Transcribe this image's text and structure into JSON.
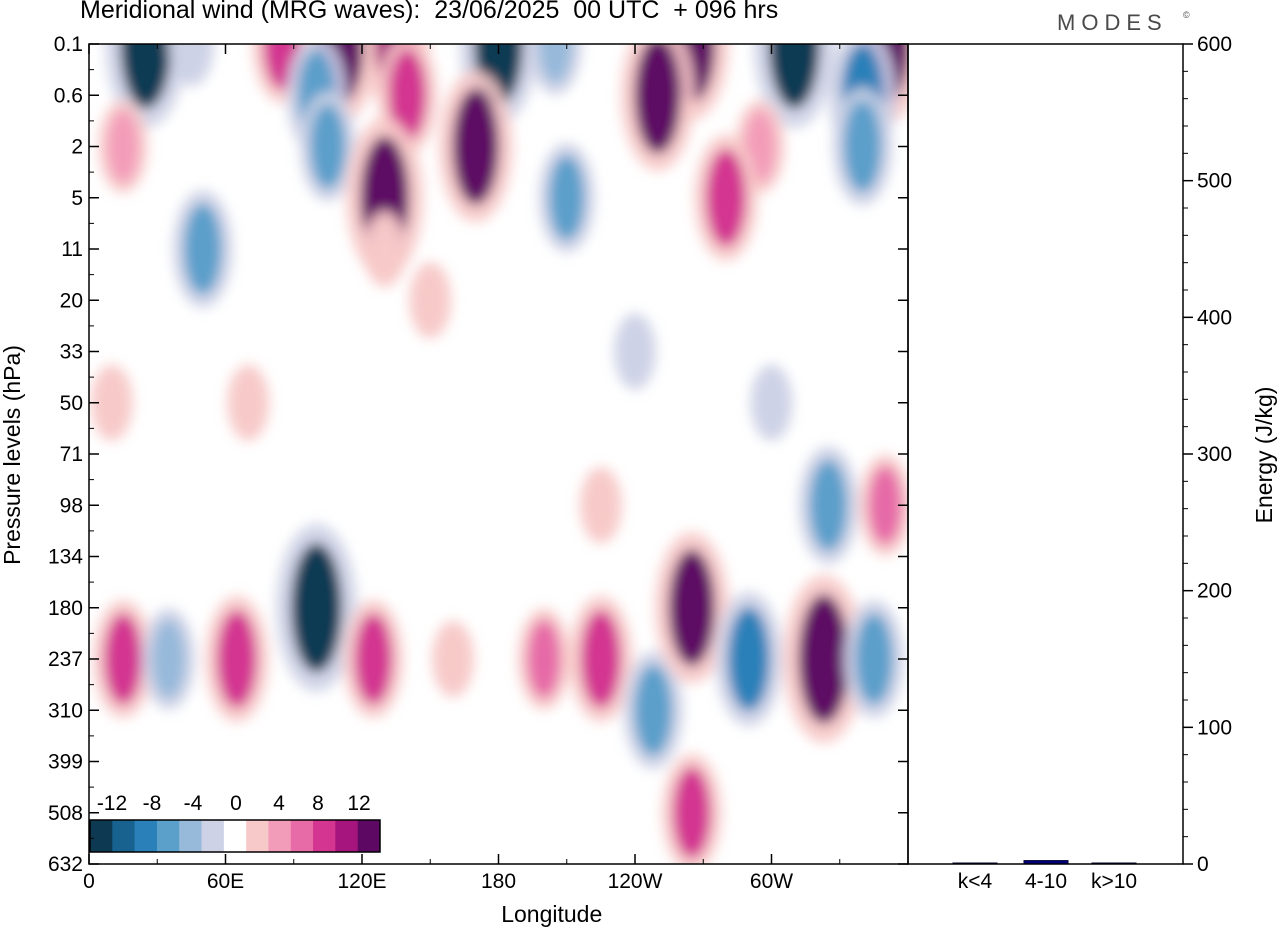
{
  "title": "Meridional wind (MRG waves):  23/06/2025  00 UTC  + 096 hrs",
  "logo": "MODES",
  "logo_mark": "©",
  "chart_data": [
    {
      "type": "heatmap",
      "title": "Meridional wind (MRG waves):  23/06/2025  00 UTC  + 096 hrs",
      "xlabel": "Longitude",
      "ylabel": "Pressure levels (hPa)",
      "x_ticks": [
        "0",
        "60E",
        "120E",
        "180",
        "120W",
        "60W"
      ],
      "x_tick_degrees": [
        0,
        60,
        120,
        180,
        240,
        300
      ],
      "xlim": [
        0,
        360
      ],
      "y_ticks": [
        "0.1",
        "0.6",
        "2",
        "5",
        "11",
        "20",
        "33",
        "50",
        "71",
        "98",
        "134",
        "180",
        "237",
        "310",
        "399",
        "508",
        "632"
      ],
      "colorbar": {
        "labels": [
          "-12",
          "-8",
          "-4",
          "0",
          "4",
          "8",
          "12"
        ],
        "levels": [
          -14,
          -12,
          -10,
          -8,
          -6,
          -4,
          -2,
          2,
          4,
          6,
          8,
          10,
          12,
          14
        ],
        "colors": [
          "#0d3a52",
          "#17628f",
          "#2a80b9",
          "#5b9fcb",
          "#97b9da",
          "#cdd2e6",
          "#ffffff",
          "#f7c9c8",
          "#f39cb9",
          "#e66ba7",
          "#d33591",
          "#a5157d",
          "#5d0963"
        ],
        "placement": "bottom-left inside plot"
      },
      "cells": [
        {
          "lon": 25,
          "level": "0.1",
          "v": -14
        },
        {
          "lon": 45,
          "level": "0.1",
          "v": -4
        },
        {
          "lon": 85,
          "level": "0.1",
          "v": 8
        },
        {
          "lon": 110,
          "level": "0.1",
          "v": 13
        },
        {
          "lon": 135,
          "level": "0.1",
          "v": 10
        },
        {
          "lon": 180,
          "level": "0.1",
          "v": -13
        },
        {
          "lon": 205,
          "level": "0.1",
          "v": -6
        },
        {
          "lon": 265,
          "level": "0.1",
          "v": 12
        },
        {
          "lon": 310,
          "level": "0.1",
          "v": -14
        },
        {
          "lon": 350,
          "level": "0.1",
          "v": 13
        },
        {
          "lon": 100,
          "level": "0.6",
          "v": -8
        },
        {
          "lon": 140,
          "level": "0.6",
          "v": 8
        },
        {
          "lon": 250,
          "level": "0.6",
          "v": 12
        },
        {
          "lon": 340,
          "level": "0.6",
          "v": -10
        },
        {
          "lon": 15,
          "level": "2",
          "v": 5
        },
        {
          "lon": 105,
          "level": "2",
          "v": -7
        },
        {
          "lon": 170,
          "level": "2",
          "v": 12
        },
        {
          "lon": 295,
          "level": "2",
          "v": 5
        },
        {
          "lon": 340,
          "level": "2",
          "v": -8
        },
        {
          "lon": 130,
          "level": "5",
          "v": 13
        },
        {
          "lon": 210,
          "level": "5",
          "v": -7
        },
        {
          "lon": 280,
          "level": "5",
          "v": 9
        },
        {
          "lon": 50,
          "level": "11",
          "v": -8
        },
        {
          "lon": 130,
          "level": "11",
          "v": 3
        },
        {
          "lon": 150,
          "level": "20",
          "v": 3
        },
        {
          "lon": 240,
          "level": "33",
          "v": -3
        },
        {
          "lon": 10,
          "level": "50",
          "v": 3
        },
        {
          "lon": 70,
          "level": "50",
          "v": 3
        },
        {
          "lon": 300,
          "level": "50",
          "v": -3
        },
        {
          "lon": 225,
          "level": "98",
          "v": 3
        },
        {
          "lon": 325,
          "level": "98",
          "v": -8
        },
        {
          "lon": 350,
          "level": "98",
          "v": 6
        },
        {
          "lon": 15,
          "level": "237",
          "v": 8
        },
        {
          "lon": 35,
          "level": "237",
          "v": -6
        },
        {
          "lon": 65,
          "level": "237",
          "v": 9
        },
        {
          "lon": 100,
          "level": "180",
          "v": -14
        },
        {
          "lon": 125,
          "level": "237",
          "v": 8
        },
        {
          "lon": 160,
          "level": "237",
          "v": 3
        },
        {
          "lon": 200,
          "level": "237",
          "v": 6
        },
        {
          "lon": 225,
          "level": "237",
          "v": 9
        },
        {
          "lon": 248,
          "level": "310",
          "v": -8
        },
        {
          "lon": 265,
          "level": "180",
          "v": 12
        },
        {
          "lon": 290,
          "level": "237",
          "v": -10
        },
        {
          "lon": 323,
          "level": "237",
          "v": 14
        },
        {
          "lon": 345,
          "level": "237",
          "v": -8
        },
        {
          "lon": 265,
          "level": "508",
          "v": 8
        }
      ]
    },
    {
      "type": "bar",
      "ylabel": "Energy (J/kg)",
      "categories": [
        "k<4",
        "4-10",
        "k>10"
      ],
      "values": [
        0.5,
        2.5,
        0.2
      ],
      "ylim": [
        0,
        600
      ],
      "y_ticks": [
        "0",
        "100",
        "200",
        "300",
        "400",
        "500",
        "600"
      ],
      "colors": [
        "#000080",
        "#000080",
        "#000080"
      ]
    }
  ]
}
